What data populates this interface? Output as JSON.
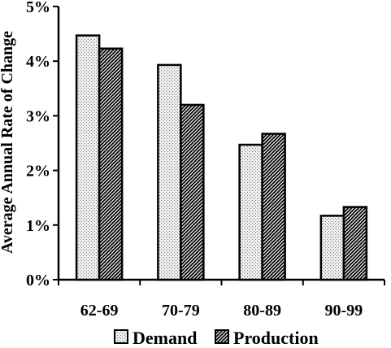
{
  "chart_data": {
    "type": "bar",
    "title": "",
    "xlabel": "",
    "ylabel": "Average Annual Rate of Change",
    "ylim": [
      0,
      5
    ],
    "yticks": [
      0,
      1,
      2,
      3,
      4,
      5
    ],
    "ytick_labels": [
      "0%",
      "1%",
      "2%",
      "3%",
      "4%",
      "5%"
    ],
    "categories": [
      "62-69",
      "70-79",
      "80-89",
      "90-99"
    ],
    "series": [
      {
        "name": "Demand",
        "values": [
          4.47,
          3.93,
          2.47,
          1.17
        ],
        "pattern": "dotted-light"
      },
      {
        "name": "Production",
        "values": [
          4.23,
          3.2,
          2.67,
          1.33
        ],
        "pattern": "diagonal-hatch"
      }
    ],
    "grid": false,
    "legend_position": "bottom"
  },
  "colors": {
    "axis": "#000000",
    "bar_fill_light": "#e6e6e6",
    "bar_hatch": "#000000",
    "background": "#ffffff"
  }
}
